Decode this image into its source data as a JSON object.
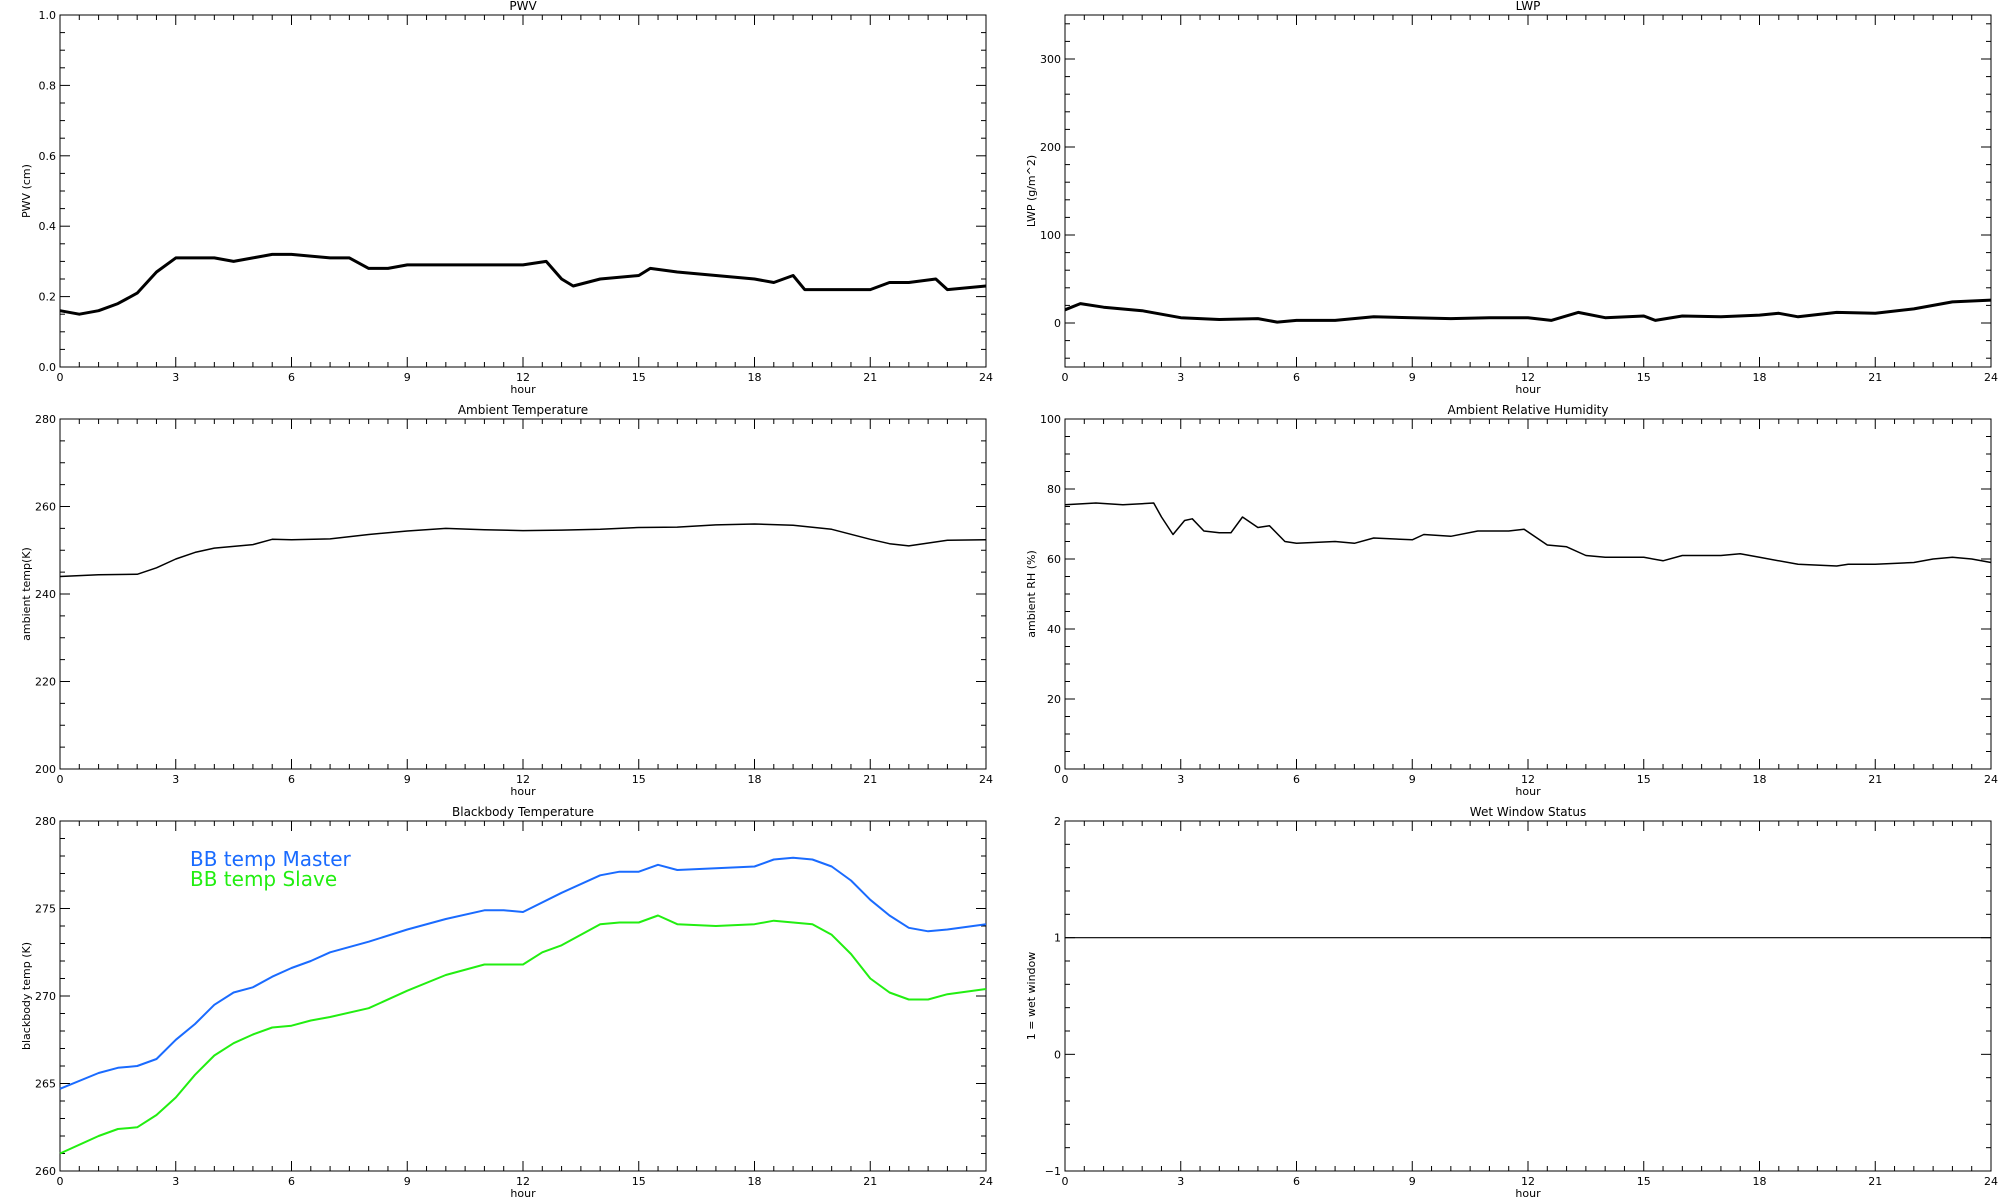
{
  "chart_data": [
    {
      "type": "line",
      "title": "PWV",
      "xlabel": "hour",
      "ylabel": "PWV (cm)",
      "xlim": [
        0,
        24
      ],
      "ylim": [
        0.0,
        1.0
      ],
      "xticks": [
        0,
        3,
        6,
        9,
        12,
        15,
        18,
        21,
        24
      ],
      "yticks": [
        0.0,
        0.2,
        0.4,
        0.6,
        0.8,
        1.0
      ],
      "ytick_labels": [
        "0.0",
        "0.2",
        "0.4",
        "0.6",
        "0.8",
        "1.0"
      ],
      "grid": false,
      "series": [
        {
          "color": "#000000",
          "width": 3,
          "x": [
            0,
            0.5,
            1,
            1.5,
            2,
            2.5,
            3,
            3.5,
            4,
            4.5,
            5,
            5.5,
            6,
            7,
            7.5,
            8,
            8.5,
            9,
            10,
            11,
            12,
            12.6,
            13,
            13.3,
            14,
            15,
            15.3,
            16,
            17,
            18,
            18.5,
            19,
            19.3,
            19.5,
            20,
            21,
            21.5,
            22,
            22.7,
            23,
            24
          ],
          "y": [
            0.16,
            0.15,
            0.16,
            0.18,
            0.21,
            0.27,
            0.31,
            0.31,
            0.31,
            0.3,
            0.31,
            0.32,
            0.32,
            0.31,
            0.31,
            0.28,
            0.28,
            0.29,
            0.29,
            0.29,
            0.29,
            0.3,
            0.25,
            0.23,
            0.25,
            0.26,
            0.28,
            0.27,
            0.26,
            0.25,
            0.24,
            0.26,
            0.22,
            0.22,
            0.22,
            0.22,
            0.24,
            0.24,
            0.25,
            0.22,
            0.23
          ]
        }
      ]
    },
    {
      "type": "line",
      "title": "LWP",
      "xlabel": "hour",
      "ylabel": "LWP (g/m^2)",
      "xlim": [
        0,
        24
      ],
      "ylim": [
        -50,
        350
      ],
      "xticks": [
        0,
        3,
        6,
        9,
        12,
        15,
        18,
        21,
        24
      ],
      "yticks": [
        0,
        100,
        200,
        300
      ],
      "ytick_labels": [
        "0",
        "100",
        "200",
        "300"
      ],
      "grid": false,
      "series": [
        {
          "color": "#000000",
          "width": 3,
          "x": [
            0,
            0.4,
            1,
            2,
            3,
            4,
            5,
            5.5,
            6,
            7,
            8,
            9,
            10,
            11,
            12,
            12.6,
            13.3,
            14,
            15,
            15.3,
            16,
            17,
            18,
            18.5,
            19,
            20,
            21,
            22,
            23,
            24
          ],
          "y": [
            15,
            22,
            18,
            14,
            6,
            4,
            5,
            1,
            3,
            3,
            7,
            6,
            5,
            6,
            6,
            3,
            12,
            6,
            8,
            3,
            8,
            7,
            9,
            11,
            7,
            12,
            11,
            16,
            24,
            26
          ]
        }
      ]
    },
    {
      "type": "line",
      "title": "Ambient Temperature",
      "xlabel": "hour",
      "ylabel": "ambient temp(K)",
      "xlim": [
        0,
        24
      ],
      "ylim": [
        200,
        280
      ],
      "xticks": [
        0,
        3,
        6,
        9,
        12,
        15,
        18,
        21,
        24
      ],
      "yticks": [
        200,
        220,
        240,
        260,
        280
      ],
      "ytick_labels": [
        "200",
        "220",
        "240",
        "260",
        "280"
      ],
      "grid": false,
      "series": [
        {
          "color": "#000000",
          "width": 1.5,
          "x": [
            0,
            1,
            2,
            2.5,
            3,
            3.5,
            4,
            5,
            5.5,
            6,
            7,
            8,
            9,
            10,
            11,
            12,
            13,
            14,
            15,
            16,
            17,
            18,
            19,
            20,
            21,
            21.5,
            22,
            23,
            24
          ],
          "y": [
            244,
            244.4,
            244.5,
            246,
            248,
            249.5,
            250.5,
            251.3,
            252.5,
            252.4,
            252.6,
            253.6,
            254.4,
            255,
            254.7,
            254.5,
            254.6,
            254.8,
            255.2,
            255.3,
            255.8,
            256,
            255.7,
            254.8,
            252.5,
            251.5,
            251,
            252.3,
            252.4
          ]
        }
      ]
    },
    {
      "type": "line",
      "title": "Ambient Relative Humidity",
      "xlabel": "hour",
      "ylabel": "ambient RH (%)",
      "xlim": [
        0,
        24
      ],
      "ylim": [
        0,
        100
      ],
      "xticks": [
        0,
        3,
        6,
        9,
        12,
        15,
        18,
        21,
        24
      ],
      "yticks": [
        0,
        20,
        40,
        60,
        80,
        100
      ],
      "ytick_labels": [
        "0",
        "20",
        "40",
        "60",
        "80",
        "100"
      ],
      "grid": false,
      "series": [
        {
          "color": "#000000",
          "width": 1.5,
          "x": [
            0,
            0.8,
            1.5,
            2.3,
            2.5,
            2.8,
            3.1,
            3.3,
            3.6,
            4,
            4.3,
            4.6,
            5,
            5.3,
            5.7,
            6,
            7,
            7.5,
            8,
            9,
            9.3,
            10,
            10.7,
            11.5,
            11.9,
            12.5,
            13,
            13.5,
            14,
            15,
            15.5,
            16,
            17,
            17.5,
            18,
            19,
            20,
            20.3,
            21,
            22,
            22.5,
            23,
            23.5,
            24
          ],
          "y": [
            75.5,
            76,
            75.5,
            76,
            72,
            67,
            71,
            71.5,
            68,
            67.5,
            67.5,
            72,
            69,
            69.5,
            65,
            64.5,
            65,
            64.5,
            66,
            65.5,
            67,
            66.5,
            68,
            68,
            68.5,
            64,
            63.5,
            61,
            60.5,
            60.5,
            59.5,
            61,
            61,
            61.5,
            60.5,
            58.5,
            58,
            58.5,
            58.5,
            59,
            60,
            60.5,
            60,
            59
          ]
        }
      ]
    },
    {
      "type": "line",
      "title": "Blackbody Temperature",
      "xlabel": "hour",
      "ylabel": "blackbody temp (K)",
      "xlim": [
        0,
        24
      ],
      "ylim": [
        260,
        280
      ],
      "xticks": [
        0,
        3,
        6,
        9,
        12,
        15,
        18,
        21,
        24
      ],
      "yticks": [
        260,
        265,
        270,
        275,
        280
      ],
      "ytick_labels": [
        "260",
        "265",
        "270",
        "275",
        "280"
      ],
      "grid": false,
      "legend_placement": "top-left",
      "series": [
        {
          "name": "BB temp Master",
          "color": "#1a6bff",
          "width": 2,
          "x": [
            0,
            1,
            1.5,
            2,
            2.5,
            3,
            3.5,
            4,
            4.5,
            5,
            5.5,
            6,
            6.5,
            7,
            8,
            9,
            10,
            11,
            11.5,
            12,
            13,
            14,
            14.5,
            15,
            15.5,
            16,
            17,
            18,
            18.5,
            19,
            19.5,
            20,
            20.5,
            21,
            21.5,
            22,
            22.5,
            23,
            24
          ],
          "y": [
            264.7,
            265.6,
            265.9,
            266,
            266.4,
            267.5,
            268.4,
            269.5,
            270.2,
            270.5,
            271.1,
            271.6,
            272,
            272.5,
            273.1,
            273.8,
            274.4,
            274.9,
            274.9,
            274.8,
            275.9,
            276.9,
            277.1,
            277.1,
            277.5,
            277.2,
            277.3,
            277.4,
            277.8,
            277.9,
            277.8,
            277.4,
            276.6,
            275.5,
            274.6,
            273.9,
            273.7,
            273.8,
            274.1
          ]
        },
        {
          "name": "BB temp Slave",
          "color": "#22ee11",
          "width": 2,
          "x": [
            0,
            1,
            1.5,
            2,
            2.5,
            3,
            3.5,
            4,
            4.5,
            5,
            5.5,
            6,
            6.5,
            7,
            8,
            9,
            10,
            11,
            11.5,
            12,
            12.5,
            13,
            14,
            14.5,
            15,
            15.5,
            16,
            17,
            18,
            18.5,
            19,
            19.5,
            20,
            20.5,
            21,
            21.5,
            22,
            22.5,
            23,
            24
          ],
          "y": [
            261,
            262,
            262.4,
            262.5,
            263.2,
            264.2,
            265.5,
            266.6,
            267.3,
            267.8,
            268.2,
            268.3,
            268.6,
            268.8,
            269.3,
            270.3,
            271.2,
            271.8,
            271.8,
            271.8,
            272.5,
            272.9,
            274.1,
            274.2,
            274.2,
            274.6,
            274.1,
            274,
            274.1,
            274.3,
            274.2,
            274.1,
            273.5,
            272.4,
            271,
            270.2,
            269.8,
            269.8,
            270.1,
            270.4
          ]
        }
      ]
    },
    {
      "type": "line",
      "title": "Wet Window Status",
      "xlabel": "hour",
      "ylabel": "1 = wet window",
      "xlim": [
        0,
        24
      ],
      "ylim": [
        -1,
        2
      ],
      "xticks": [
        0,
        3,
        6,
        9,
        12,
        15,
        18,
        21,
        24
      ],
      "yticks": [
        -1,
        0,
        1,
        2
      ],
      "ytick_labels": [
        "−1",
        "0",
        "1",
        "2"
      ],
      "grid": false,
      "series": [
        {
          "color": "#000000",
          "width": 1.2,
          "x": [
            0,
            24
          ],
          "y": [
            1,
            1
          ]
        }
      ]
    }
  ]
}
